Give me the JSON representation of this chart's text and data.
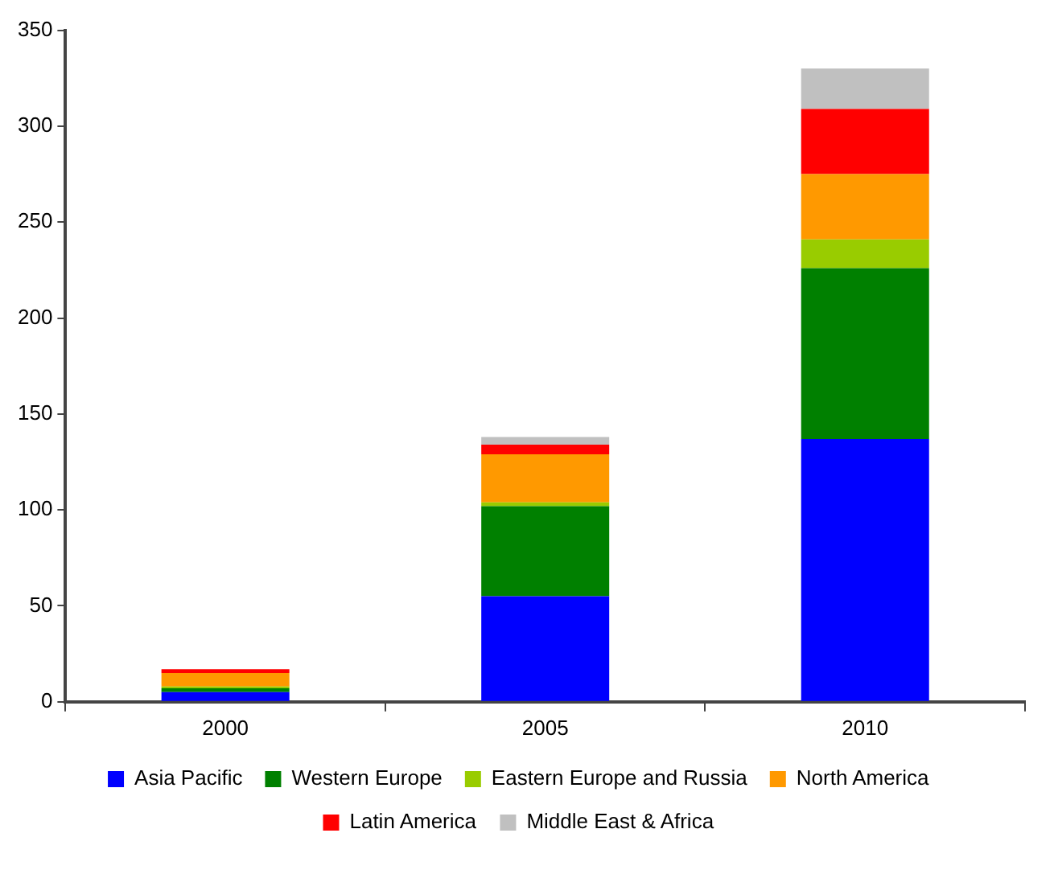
{
  "chart_data": {
    "type": "bar",
    "stacked": true,
    "categories": [
      "2000",
      "2005",
      "2010"
    ],
    "series": [
      {
        "name": "Asia Pacific",
        "color": "#0000ff",
        "values": [
          5,
          55,
          137
        ]
      },
      {
        "name": "Western Europe",
        "color": "#008000",
        "values": [
          2,
          47,
          89
        ]
      },
      {
        "name": "Eastern Europe and Russia",
        "color": "#99cc00",
        "values": [
          1,
          2,
          15
        ]
      },
      {
        "name": "North America",
        "color": "#ff9900",
        "values": [
          7,
          25,
          34
        ]
      },
      {
        "name": "Latin America",
        "color": "#ff0000",
        "values": [
          2,
          5,
          34
        ]
      },
      {
        "name": "Middle East & Africa",
        "color": "#c0c0c0",
        "values": [
          null,
          4,
          21
        ]
      }
    ],
    "ylim": [
      0,
      350
    ],
    "yticks": [
      0,
      50,
      100,
      150,
      200,
      250,
      300,
      350
    ],
    "grid": false,
    "legend": "bottom"
  }
}
